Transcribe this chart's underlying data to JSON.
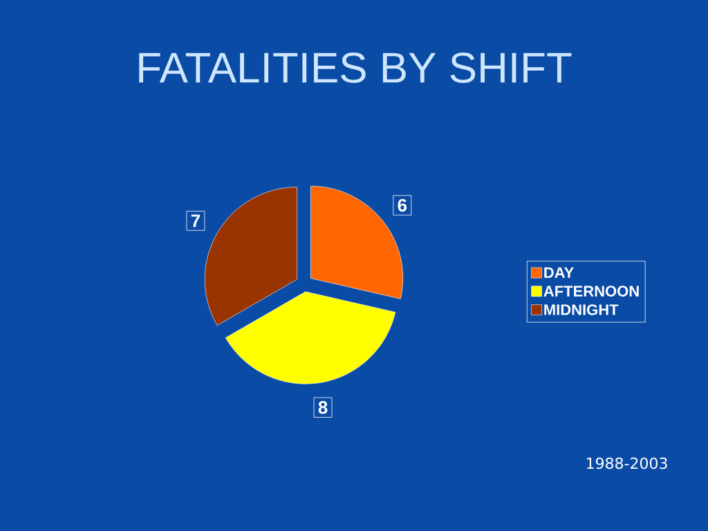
{
  "chart_data": {
    "type": "pie",
    "title": "FATALITIES BY SHIFT",
    "categories": [
      "DAY",
      "AFTERNOON",
      "MIDNIGHT"
    ],
    "values": [
      6,
      8,
      7
    ],
    "colors": [
      "#ff6600",
      "#ffff00",
      "#993300"
    ],
    "data_labels": true,
    "legend": "right",
    "annotations": [
      "1988-2003"
    ]
  }
}
